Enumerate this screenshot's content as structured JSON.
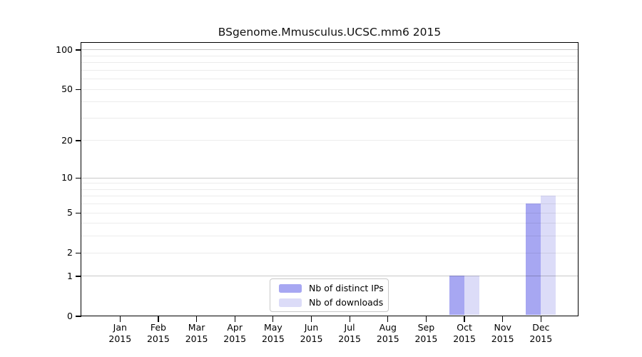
{
  "title": "BSgenome.Mmusculus.UCSC.mm6 2015",
  "chart_data": {
    "type": "bar",
    "title": "BSgenome.Mmusculus.UCSC.mm6 2015",
    "categories": [
      "Jan",
      "Feb",
      "Mar",
      "Apr",
      "May",
      "Jun",
      "Jul",
      "Aug",
      "Sep",
      "Oct",
      "Nov",
      "Dec"
    ],
    "year_label": "2015",
    "series": [
      {
        "name": "Nb of distinct IPs",
        "color": "#a7a7f2",
        "values": [
          0,
          0,
          0,
          0,
          0,
          0,
          0,
          0,
          0,
          1,
          0,
          6
        ]
      },
      {
        "name": "Nb of downloads",
        "color": "#dcdcf8",
        "values": [
          0,
          0,
          0,
          0,
          0,
          0,
          0,
          0,
          0,
          1,
          0,
          7
        ]
      }
    ],
    "yscale": "log1p",
    "yticks": [
      0,
      1,
      2,
      5,
      10,
      20,
      50,
      100
    ],
    "major_gridline_values": [
      1,
      10,
      100
    ],
    "minor_gridline_values": [
      2,
      3,
      4,
      5,
      6,
      7,
      8,
      9,
      20,
      30,
      40,
      50,
      60,
      70,
      80,
      90
    ],
    "ylim": [
      0,
      113
    ],
    "grid": true,
    "legend_position": "bottom-center"
  },
  "colors": {
    "background": "#ffffff",
    "axis": "#000000",
    "major_grid": "#c9c9c9",
    "minor_grid": "#ededed"
  }
}
